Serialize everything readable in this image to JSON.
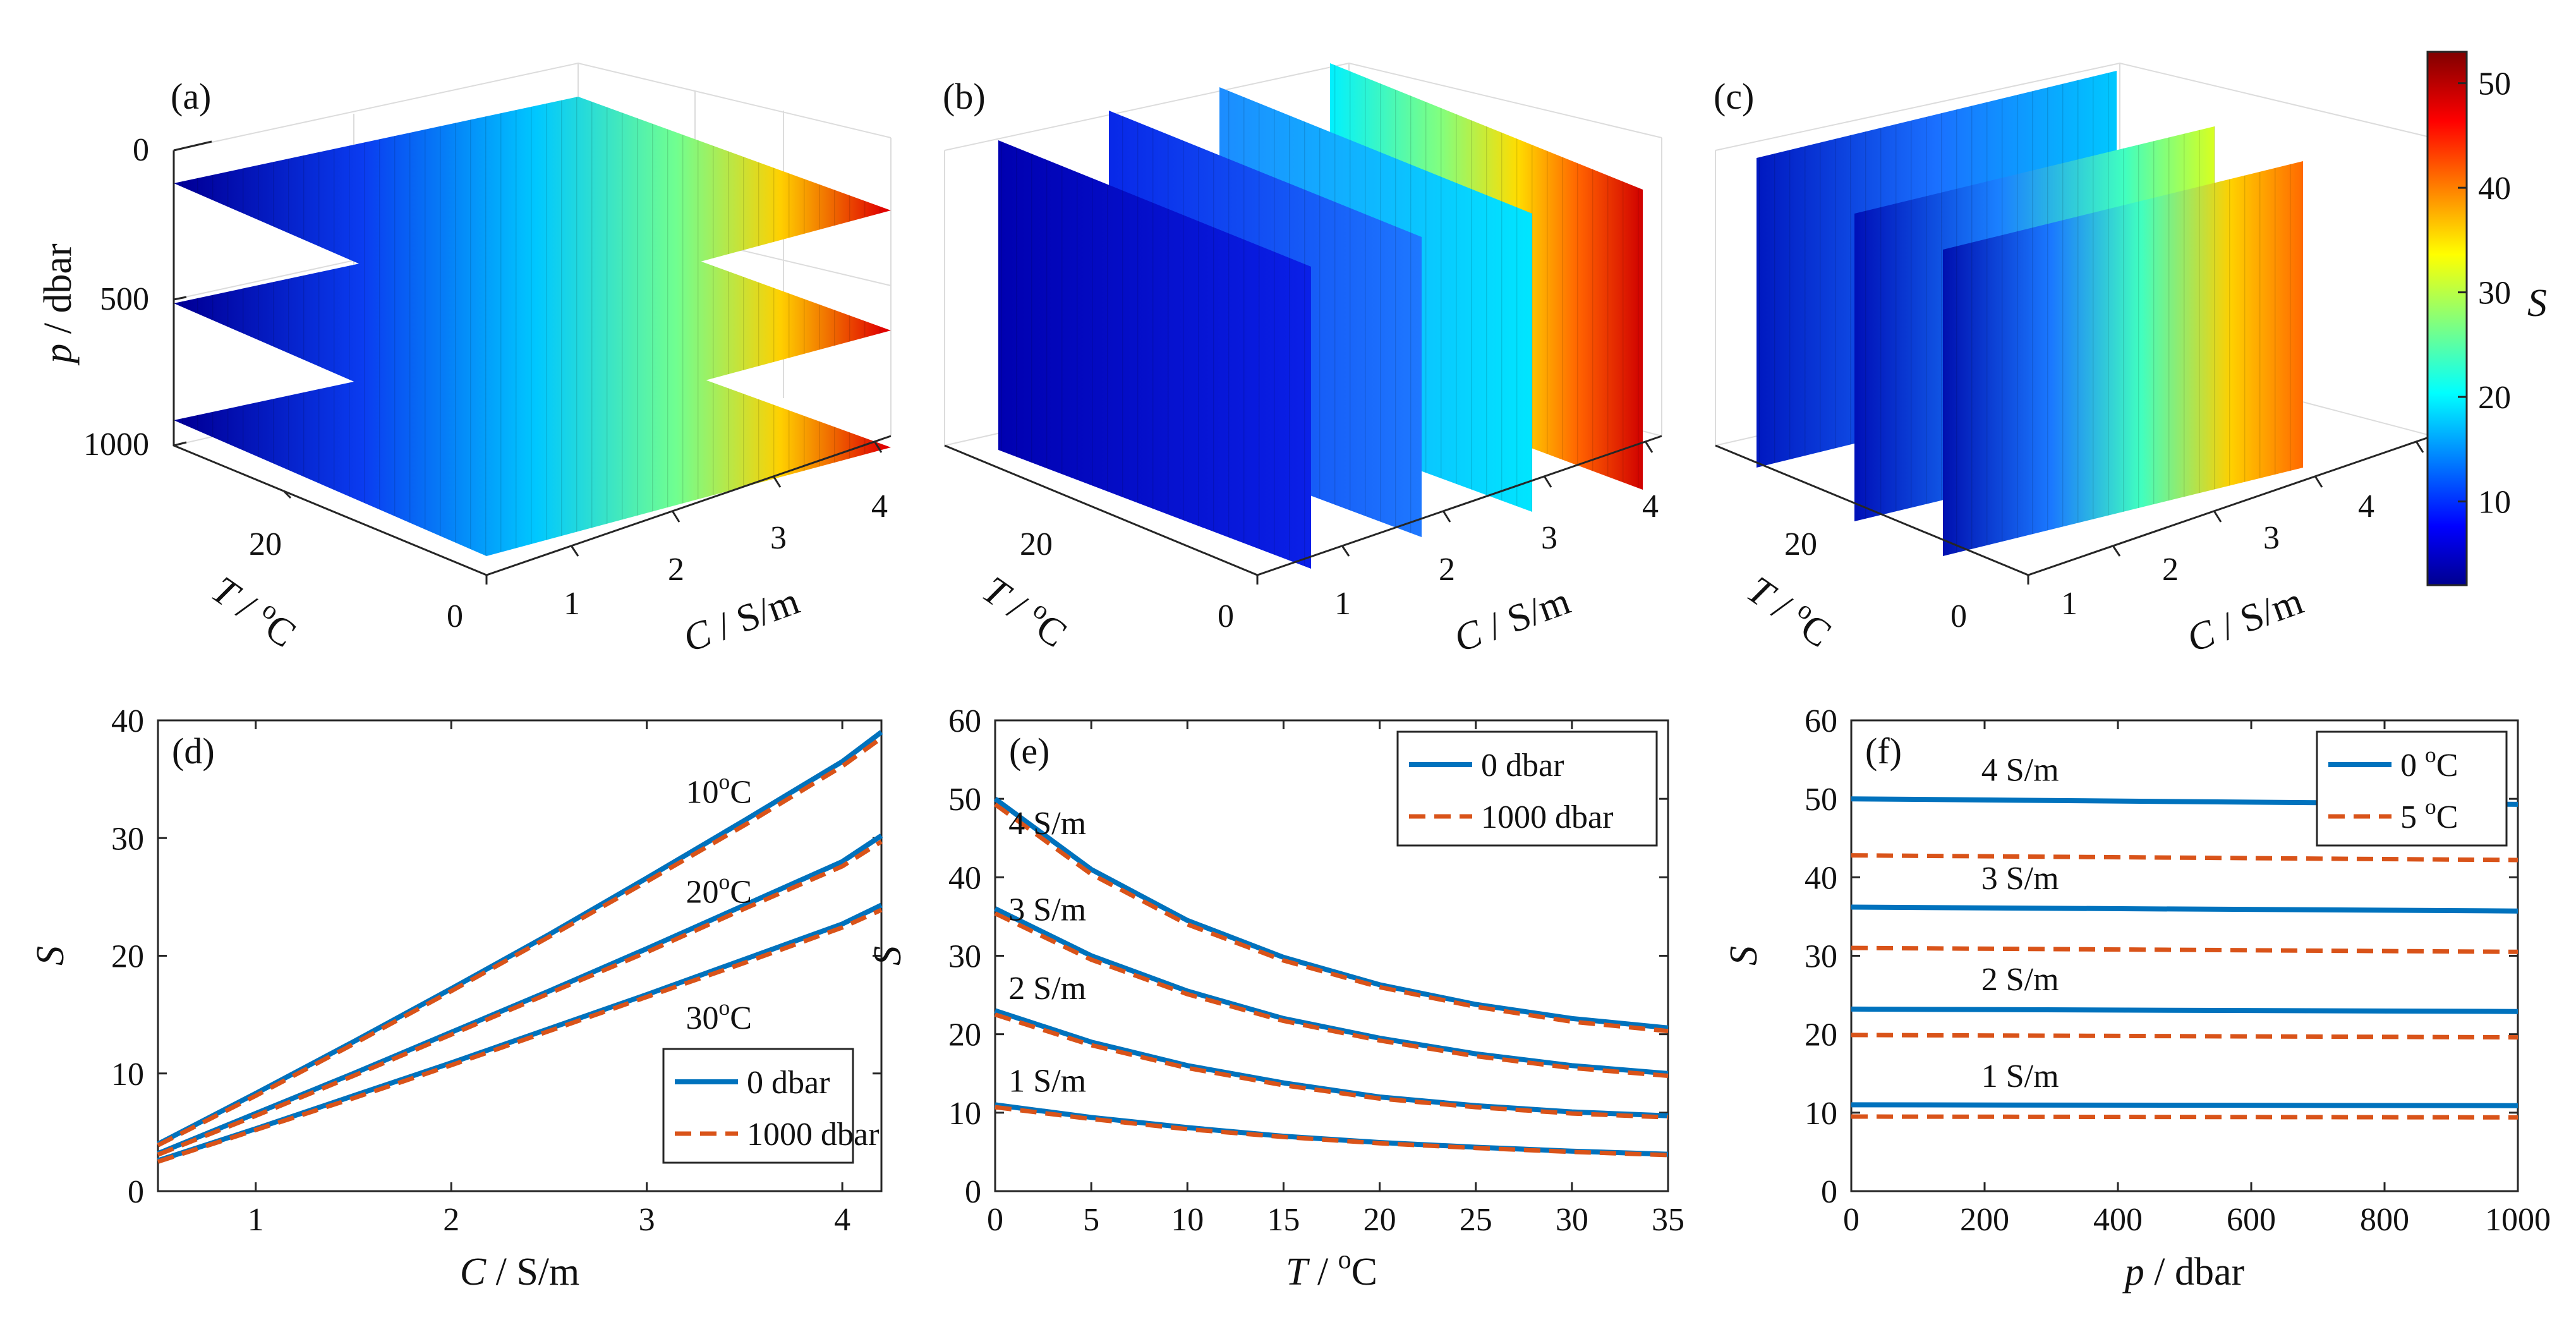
{
  "colors": {
    "blue": "#0072BD",
    "orange": "#D95319",
    "axis": "#262626",
    "grid": "#dcdcdc"
  },
  "colorbar": {
    "label": "S",
    "ticks": [
      "10",
      "20",
      "30",
      "40",
      "50"
    ],
    "tick_values": [
      10,
      20,
      30,
      40,
      50
    ],
    "range": [
      2,
      53
    ],
    "colormap": "jet"
  },
  "chart_data": [
    {
      "id": "a",
      "panel_label": "(a)",
      "type": "surface3d",
      "description": "Horizontal slices of S(C,T,p) at fixed pressures",
      "slices_p_dbar": [
        0,
        500,
        1000
      ],
      "p_ticks": [
        "0",
        "500",
        "1000"
      ],
      "T_ticks": [
        "0",
        "20"
      ],
      "C_ticks": [
        "1",
        "2",
        "3",
        "4"
      ],
      "xlabel_var": "C",
      "xlabel_unit": " / S/m",
      "ylabel_var": "T",
      "ylabel_unit": " / ",
      "zlabel_var": "p",
      "zlabel_unit": " / dbar",
      "deg_sup": "o",
      "deg_C": "C"
    },
    {
      "id": "b",
      "panel_label": "(b)",
      "type": "surface3d",
      "description": "Vertical slices of S at fixed conductivity",
      "slices_C_S_per_m": [
        1,
        2,
        3,
        4
      ],
      "T_ticks": [
        "0",
        "20"
      ],
      "C_ticks": [
        "1",
        "2",
        "3",
        "4"
      ],
      "xlabel_var": "C",
      "xlabel_unit": " / S/m",
      "ylabel_var": "T",
      "ylabel_unit": " / ",
      "deg_sup": "o",
      "deg_C": "C"
    },
    {
      "id": "c",
      "panel_label": "(c)",
      "type": "surface3d",
      "description": "Vertical slices of S at fixed temperature",
      "slices_T_degC": [
        5,
        15,
        25
      ],
      "T_ticks": [
        "0",
        "20"
      ],
      "C_ticks": [
        "1",
        "2",
        "3",
        "4"
      ],
      "xlabel_var": "C",
      "xlabel_unit": " / S/m",
      "ylabel_var": "T",
      "ylabel_unit": " / ",
      "deg_sup": "o",
      "deg_C": "C"
    },
    {
      "id": "d",
      "panel_label": "(d)",
      "type": "line",
      "xlabel_var": "C",
      "xlabel_unit": " / S/m",
      "ylabel_var": "S",
      "xlim": [
        0.5,
        4.2
      ],
      "ylim": [
        0,
        40
      ],
      "xticks": [
        1,
        2,
        3,
        4
      ],
      "yticks": [
        0,
        10,
        20,
        30,
        40
      ],
      "x": [
        0.5,
        1.0,
        1.5,
        2.0,
        2.5,
        3.0,
        3.5,
        4.0,
        4.2
      ],
      "curve_labels": [
        {
          "base": "10",
          "sup": "o",
          "tail": "C",
          "at": [
            3.2,
            33
          ]
        },
        {
          "base": "20",
          "sup": "o",
          "tail": "C",
          "at": [
            3.2,
            24.5
          ]
        },
        {
          "base": "30",
          "sup": "o",
          "tail": "C",
          "at": [
            3.2,
            13.8
          ]
        }
      ],
      "series": [
        {
          "name": "0 dbar",
          "group": "10C",
          "style": "solid",
          "values": [
            4.0,
            8.3,
            12.7,
            17.2,
            21.8,
            26.6,
            31.5,
            36.5,
            39.0
          ]
        },
        {
          "name": "1000 dbar",
          "group": "10C",
          "style": "dashed",
          "values": [
            3.9,
            8.1,
            12.5,
            17.0,
            21.6,
            26.3,
            31.1,
            36.1,
            38.5
          ]
        },
        {
          "name": "0 dbar",
          "group": "20C",
          "style": "solid",
          "values": [
            3.2,
            6.6,
            10.0,
            13.5,
            17.0,
            20.6,
            24.3,
            28.0,
            30.2
          ]
        },
        {
          "name": "1000 dbar",
          "group": "20C",
          "style": "dashed",
          "values": [
            3.1,
            6.4,
            9.8,
            13.3,
            16.8,
            20.3,
            24.0,
            27.6,
            29.7
          ]
        },
        {
          "name": "0 dbar",
          "group": "30C",
          "style": "solid",
          "values": [
            2.6,
            5.3,
            8.1,
            10.9,
            13.8,
            16.7,
            19.7,
            22.7,
            24.3
          ]
        },
        {
          "name": "1000 dbar",
          "group": "30C",
          "style": "dashed",
          "values": [
            2.5,
            5.2,
            7.9,
            10.7,
            13.6,
            16.5,
            19.4,
            22.4,
            23.9
          ]
        }
      ],
      "legend": {
        "position": "bottom-right",
        "entries": [
          "0 dbar",
          "1000 dbar"
        ]
      }
    },
    {
      "id": "e",
      "panel_label": "(e)",
      "type": "line",
      "xlabel_var": "T",
      "xlabel_unit": " / ",
      "deg_sup": "o",
      "deg_C": "C",
      "ylabel_var": "S",
      "xlim": [
        0,
        35
      ],
      "ylim": [
        0,
        60
      ],
      "xticks": [
        0,
        5,
        10,
        15,
        20,
        25,
        30,
        35
      ],
      "yticks": [
        0,
        10,
        20,
        30,
        40,
        50,
        60
      ],
      "x": [
        0,
        5,
        10,
        15,
        20,
        25,
        30,
        35
      ],
      "curve_labels": [
        {
          "text": "4 S/m",
          "at": [
            0.7,
            45.5
          ]
        },
        {
          "text": "3 S/m",
          "at": [
            0.7,
            34.5
          ]
        },
        {
          "text": "2 S/m",
          "at": [
            0.7,
            24.5
          ]
        },
        {
          "text": "1 S/m",
          "at": [
            0.7,
            12.7
          ]
        }
      ],
      "series": [
        {
          "name": "0 dbar",
          "group": "4",
          "style": "solid",
          "values": [
            50.0,
            41.0,
            34.5,
            29.8,
            26.3,
            23.8,
            22.0,
            20.8
          ]
        },
        {
          "name": "1000 dbar",
          "group": "4",
          "style": "dashed",
          "values": [
            49.3,
            40.4,
            34.0,
            29.4,
            26.0,
            23.5,
            21.6,
            20.4
          ]
        },
        {
          "name": "0 dbar",
          "group": "3",
          "style": "solid",
          "values": [
            36.0,
            30.0,
            25.5,
            22.0,
            19.5,
            17.5,
            16.0,
            15.0
          ]
        },
        {
          "name": "1000 dbar",
          "group": "3",
          "style": "dashed",
          "values": [
            35.4,
            29.5,
            25.1,
            21.7,
            19.2,
            17.2,
            15.7,
            14.7
          ]
        },
        {
          "name": "0 dbar",
          "group": "2",
          "style": "solid",
          "values": [
            23.0,
            19.0,
            16.0,
            13.8,
            12.0,
            10.9,
            10.1,
            9.6
          ]
        },
        {
          "name": "1000 dbar",
          "group": "2",
          "style": "dashed",
          "values": [
            22.5,
            18.6,
            15.7,
            13.5,
            11.8,
            10.7,
            9.9,
            9.4
          ]
        },
        {
          "name": "0 dbar",
          "group": "1",
          "style": "solid",
          "values": [
            11.0,
            9.4,
            8.1,
            7.0,
            6.2,
            5.6,
            5.1,
            4.7
          ]
        },
        {
          "name": "1000 dbar",
          "group": "1",
          "style": "dashed",
          "values": [
            10.7,
            9.2,
            7.9,
            6.9,
            6.1,
            5.5,
            5.0,
            4.6
          ]
        }
      ],
      "legend": {
        "position": "top-right",
        "entries": [
          "0 dbar",
          "1000 dbar"
        ]
      }
    },
    {
      "id": "f",
      "panel_label": "(f)",
      "type": "line",
      "xlabel_var": "p",
      "xlabel_unit": " / dbar",
      "ylabel_var": "S",
      "xlim": [
        0,
        1000
      ],
      "ylim": [
        0,
        60
      ],
      "xticks": [
        0,
        200,
        400,
        600,
        800,
        1000
      ],
      "yticks": [
        0,
        10,
        20,
        30,
        40,
        50,
        60
      ],
      "x": [
        0,
        1000
      ],
      "curve_labels": [
        {
          "text": "4 S/m",
          "at": [
            195,
            52.3
          ]
        },
        {
          "text": "3 S/m",
          "at": [
            195,
            38.5
          ]
        },
        {
          "text": "2 S/m",
          "at": [
            195,
            25.6
          ]
        },
        {
          "text": "1 S/m",
          "at": [
            195,
            13.3
          ]
        }
      ],
      "series": [
        {
          "name": "0 °C",
          "group": "4",
          "style": "solid",
          "values": [
            50.0,
            49.3
          ]
        },
        {
          "name": "5 °C",
          "group": "4",
          "style": "dashed",
          "values": [
            42.8,
            42.2
          ]
        },
        {
          "name": "0 °C",
          "group": "3",
          "style": "solid",
          "values": [
            36.2,
            35.7
          ]
        },
        {
          "name": "5 °C",
          "group": "3",
          "style": "dashed",
          "values": [
            31.0,
            30.5
          ]
        },
        {
          "name": "0 °C",
          "group": "2",
          "style": "solid",
          "values": [
            23.2,
            22.9
          ]
        },
        {
          "name": "5 °C",
          "group": "2",
          "style": "dashed",
          "values": [
            19.9,
            19.6
          ]
        },
        {
          "name": "0 °C",
          "group": "1",
          "style": "solid",
          "values": [
            11.0,
            10.9
          ]
        },
        {
          "name": "5 °C",
          "group": "1",
          "style": "dashed",
          "values": [
            9.5,
            9.4
          ]
        }
      ],
      "legend": {
        "position": "top-right",
        "entries": [
          {
            "base": "0 ",
            "sup": "o",
            "tail": "C"
          },
          {
            "base": "5 ",
            "sup": "o",
            "tail": "C"
          }
        ]
      }
    }
  ]
}
